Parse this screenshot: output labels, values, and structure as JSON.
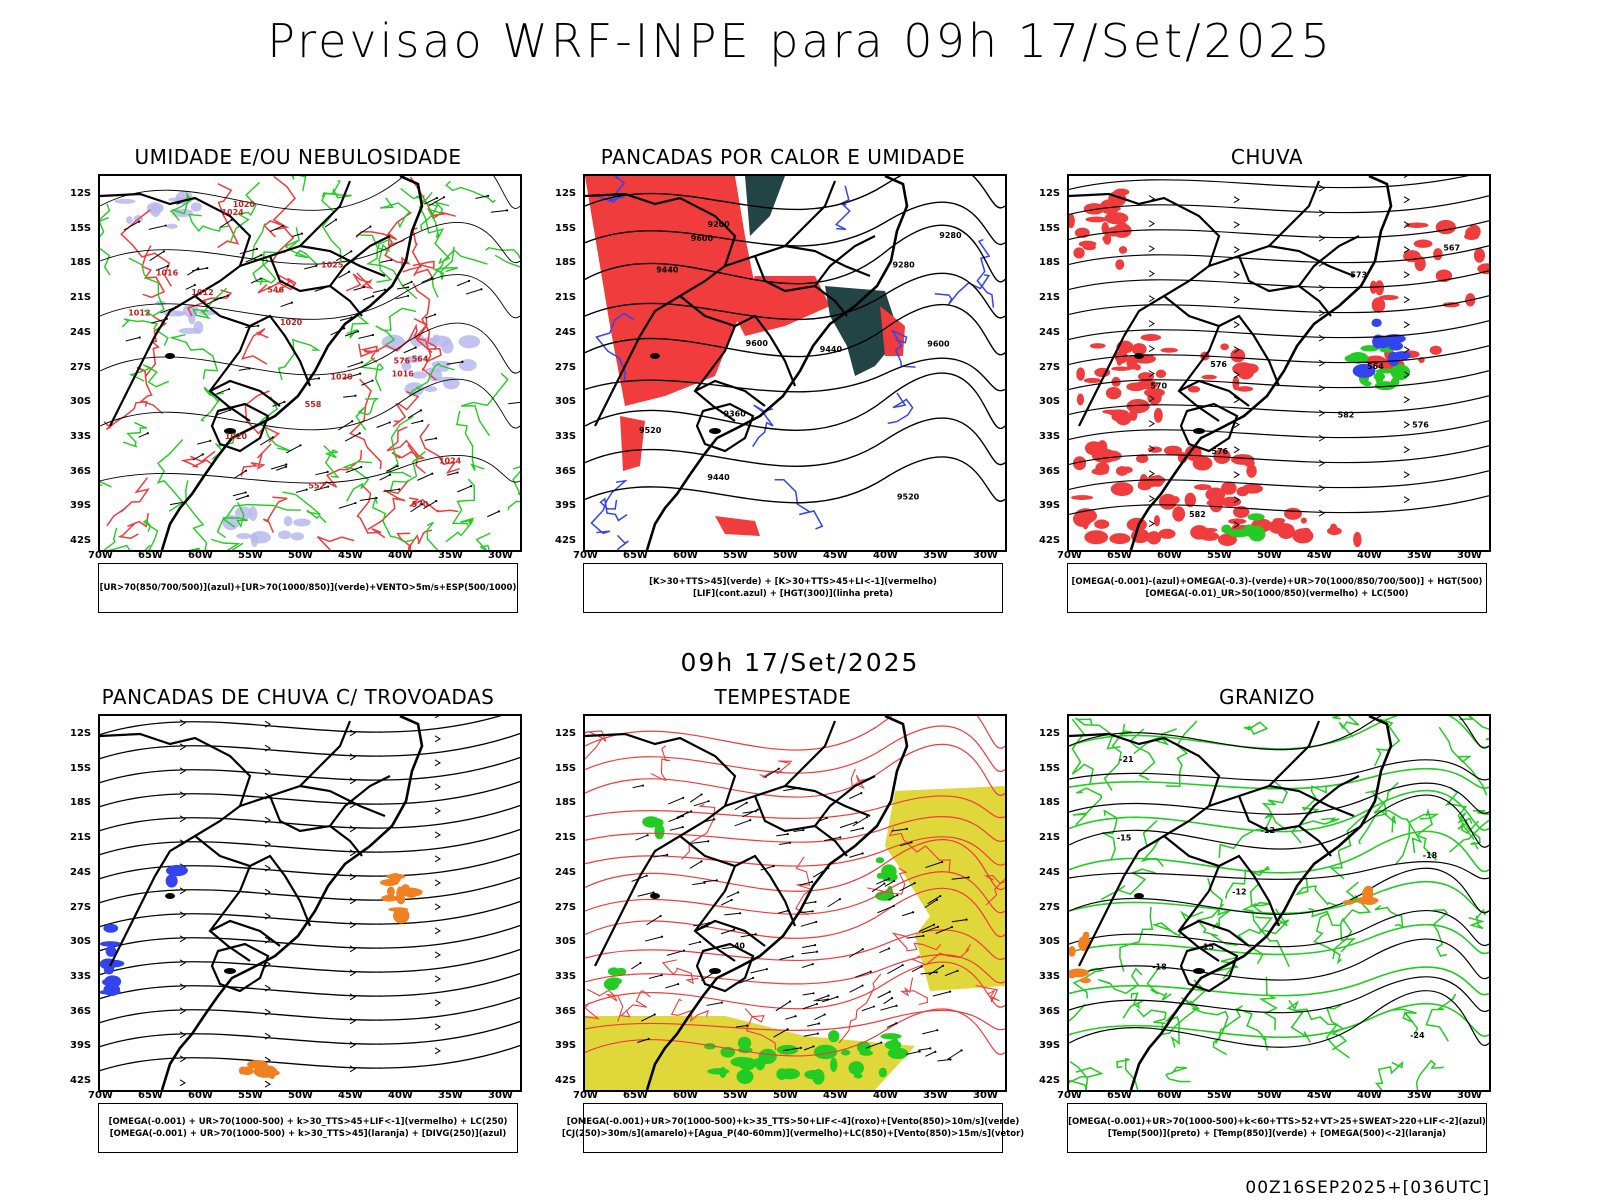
{
  "header": {
    "title": "Previsao WRF-INPE  para 09h 17/Set/2025"
  },
  "mid_title": "09h 17/Set/2025",
  "footer": "00Z16SEP2025+[036UTC]",
  "lat_labels": [
    "12S",
    "15S",
    "18S",
    "21S",
    "24S",
    "27S",
    "30S",
    "33S",
    "36S",
    "39S",
    "42S"
  ],
  "lon_labels": [
    "70W",
    "65W",
    "60W",
    "55W",
    "50W",
    "45W",
    "40W",
    "35W",
    "30W"
  ],
  "colors": {
    "red": "#f03c3c",
    "green": "#22cc22",
    "blue": "#3344ee",
    "orange": "#f08020",
    "yellow": "#e0d83a",
    "lavender": "#b8b8f0",
    "dark_teal": "#234444"
  },
  "panels": [
    {
      "id": "umidade",
      "title": "UMIDADE E/OU NEBULOSIDADE",
      "legend": [
        "[UR>70(850/700/500)](azul)+[UR>70(1000/850)](verde)+VENTO>5m/s+ESP(500/1000)"
      ],
      "labels": [
        "1012",
        "1016",
        "1020",
        "1024",
        "1020",
        "1025",
        "1012",
        "1020",
        "1024",
        "1016",
        "1020",
        "576",
        "570",
        "564",
        "558",
        "552",
        "546"
      ]
    },
    {
      "id": "pancadas-calor",
      "title": "PANCADAS POR CALOR E UMIDADE",
      "legend": [
        "[K>30+TTS>45](verde) + [K>30+TTS>45+LI<-1](vermelho)",
        "[LIF](cont.azul) + [HGT(300)](linha preta)"
      ],
      "labels": [
        "9600",
        "9600",
        "9600",
        "9520",
        "9520",
        "9440",
        "9440",
        "9440",
        "9360",
        "9280",
        "9280",
        "9200"
      ]
    },
    {
      "id": "chuva",
      "title": "CHUVA",
      "legend": [
        "[OMEGA(-0.001)-(azul)+OMEGA(-0.3)-(verde)+UR>70(1000/850/700/500)] + HGT(500)",
        "[OMEGA(-0.01)_UR>50(1000/850)(vermelho) + LC(500)"
      ],
      "labels": [
        "582",
        "582",
        "576",
        "576",
        "576",
        "573",
        "570",
        "567",
        "564"
      ]
    },
    {
      "id": "trovoadas",
      "title": "PANCADAS DE CHUVA C/ TROVOADAS",
      "legend": [
        "[OMEGA(-0.001) + UR>70(1000-500) + k>30_TTS>45+LIF<-1](vermelho) + LC(250)",
        "[OMEGA(-0.001) + UR>70(1000-500) + k>30_TTS>45](laranja) + [DIVG(250)](azul)"
      ],
      "labels": []
    },
    {
      "id": "tempestade",
      "title": "TEMPESTADE",
      "legend": [
        "[OMEGA(-0.001)+UR>70(1000-500)+k>35_TTS>50+LIF<-4](roxo)+[Vento(850)>10m/s](verde)",
        "[CJ(250)>30m/s](amarelo)+[Agua_P(40-60mm)](vermelho)+LC(850)+[Vento(850)>15m/s](vetor)"
      ],
      "labels": [
        "40"
      ]
    },
    {
      "id": "granizo",
      "title": "GRANIZO",
      "legend": [
        "[OMEGA(-0.001)+UR>70(1000-500)+k<60+TTS>52+VT>25+SWEAT>220+LIF<-2](azul)",
        "[Temp(500)](preto) + [Temp(850)](verde) + [OMEGA(500)<-2](laranja)"
      ],
      "labels": [
        "-12",
        "-15",
        "-18",
        "-18",
        "-15",
        "-12",
        "-24",
        "-21"
      ]
    }
  ]
}
